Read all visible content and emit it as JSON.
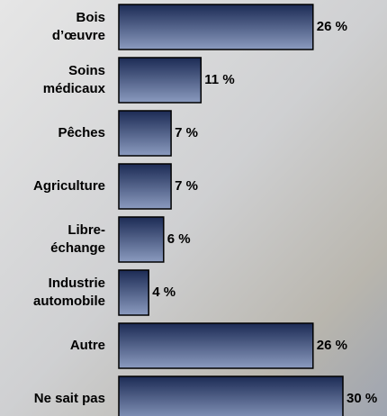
{
  "chart_data": {
    "type": "hbar",
    "categories": [
      [
        "Bois",
        "d’œuvre"
      ],
      [
        "Soins",
        "médicaux"
      ],
      [
        "Pêches"
      ],
      [
        "Agriculture"
      ],
      [
        "Libre-",
        "échange"
      ],
      [
        "Industrie",
        "automobile"
      ],
      [
        "Autre"
      ],
      [
        "Ne sait pas"
      ]
    ],
    "values": [
      26,
      11,
      7,
      7,
      6,
      4,
      26,
      30
    ],
    "value_labels": [
      "26 %",
      "11 %",
      "7 %",
      "7 %",
      "6 %",
      "4 %",
      "26 %",
      "30 %"
    ],
    "color": "#2a3f6e"
  }
}
